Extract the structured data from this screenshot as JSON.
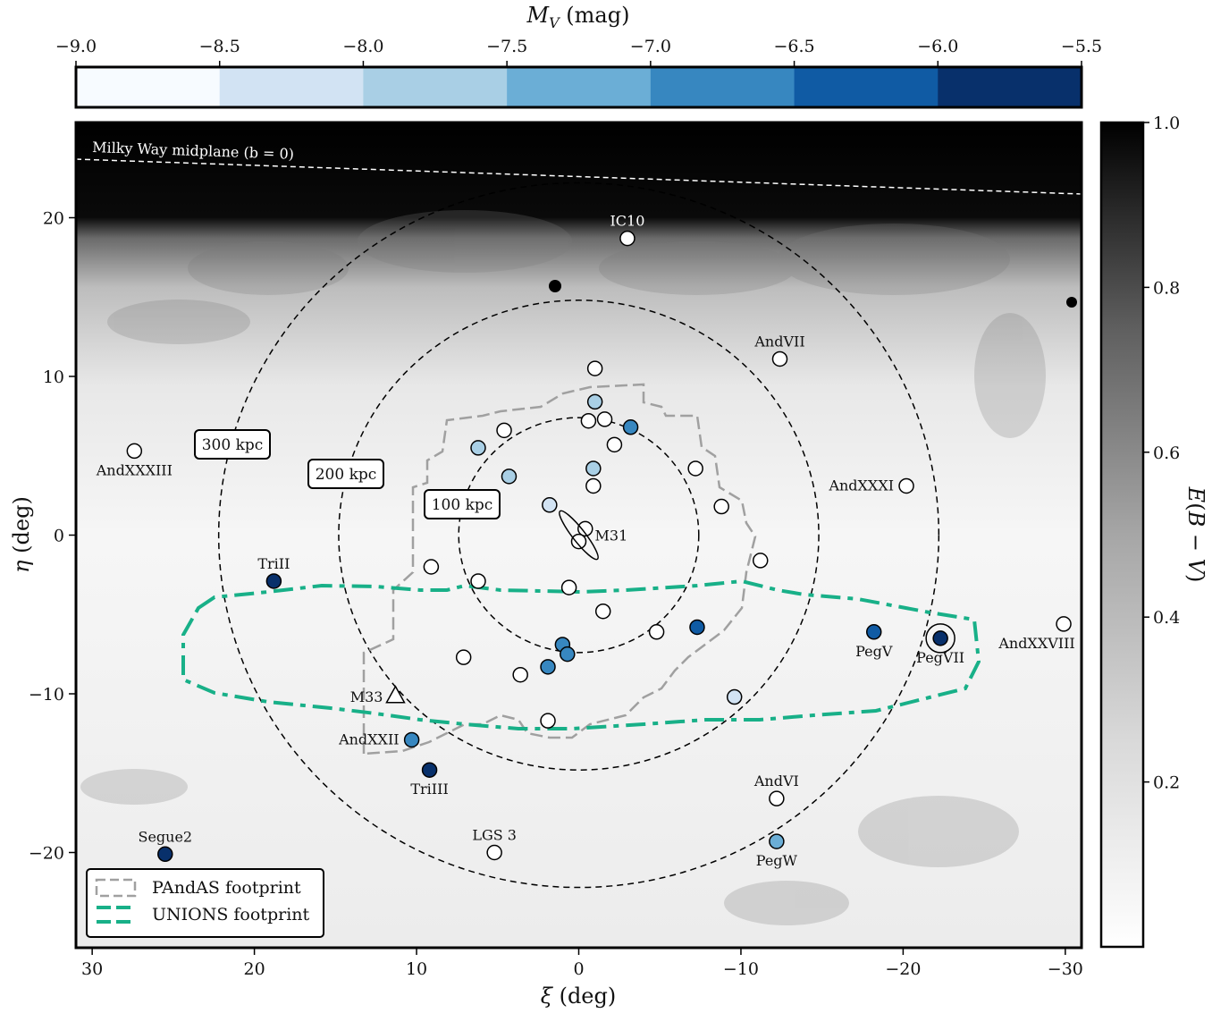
{
  "chart_data": {
    "type": "scatter",
    "xlabel": "ξ (deg)",
    "ylabel": "η (deg)",
    "xlim": [
      31,
      -31
    ],
    "ylim": [
      -26,
      26
    ],
    "xticks": [
      30,
      20,
      10,
      0,
      -10,
      -20,
      -30
    ],
    "xtick_labels": [
      "30",
      "20",
      "10",
      "0",
      "−10",
      "−20",
      "−30"
    ],
    "yticks": [
      20,
      10,
      0,
      -10,
      -20
    ],
    "ytick_labels": [
      "20",
      "10",
      "0",
      "−10",
      "−20"
    ],
    "top_colorbar": {
      "label": "M_V (mag)",
      "ticks": [
        "−9.0",
        "−8.5",
        "−8.0",
        "−7.5",
        "−7.0",
        "−6.5",
        "−6.0",
        "−5.5"
      ],
      "bins": [
        -9.0,
        -8.5,
        -8.0,
        -7.5,
        -7.0,
        -6.5,
        -6.0,
        -5.5
      ],
      "colors": [
        "#f7fbff",
        "#d2e3f3",
        "#a9cfe5",
        "#6baed6",
        "#3787c0",
        "#105ba4",
        "#08306b"
      ]
    },
    "side_colorbar": {
      "label": "E(B − V)",
      "ticks": [
        "1.0",
        "0.8",
        "0.6",
        "0.4",
        "0.2"
      ],
      "tick_values": [
        1.0,
        0.8,
        0.6,
        0.4,
        0.2
      ],
      "range": [
        0.0,
        1.0
      ]
    },
    "midplane_label": "Milky Way midplane (b = 0)",
    "rings": [
      {
        "label": "100 kpc",
        "rx": 7.4,
        "ry": 7.4
      },
      {
        "label": "200 kpc",
        "rx": 14.8,
        "ry": 14.8
      },
      {
        "label": "300 kpc",
        "rx": 22.2,
        "ry": 22.2
      }
    ],
    "legend": [
      {
        "label": "PAndAS footprint",
        "color": "#a0a0a0"
      },
      {
        "label": "UNIONS footprint",
        "color": "#18b088"
      }
    ],
    "named_objects": [
      {
        "name": "IC10",
        "x": -3.0,
        "y": 18.7,
        "color": "#ffffff",
        "label_pos": "above",
        "label_color": "white"
      },
      {
        "name": "AndVII",
        "x": -12.4,
        "y": 11.1,
        "color": "#ffffff",
        "label_pos": "above"
      },
      {
        "name": "AndXXXIII",
        "x": 27.4,
        "y": 5.3,
        "color": "#ffffff",
        "label_pos": "below"
      },
      {
        "name": "AndXXXI",
        "x": -20.2,
        "y": 3.1,
        "color": "#ffffff",
        "label_pos": "left"
      },
      {
        "name": "TriII",
        "x": 18.8,
        "y": -2.9,
        "color": "#08306b",
        "label_pos": "above"
      },
      {
        "name": "AndXXVIII",
        "x": -29.9,
        "y": -5.6,
        "color": "#ffffff",
        "label_pos": "below"
      },
      {
        "name": "PegV",
        "x": -18.2,
        "y": -6.1,
        "color": "#105ba4",
        "label_pos": "below"
      },
      {
        "name": "PegVII",
        "x": -22.3,
        "y": -6.5,
        "color": "#08306b",
        "label_pos": "below",
        "ring": true
      },
      {
        "name": "AndXXII",
        "x": 10.3,
        "y": -12.9,
        "color": "#3787c0",
        "label_pos": "left"
      },
      {
        "name": "TriIII",
        "x": 9.2,
        "y": -14.8,
        "color": "#08306b",
        "label_pos": "below"
      },
      {
        "name": "AndVI",
        "x": -12.2,
        "y": -16.6,
        "color": "#ffffff",
        "label_pos": "above"
      },
      {
        "name": "PegW",
        "x": -12.2,
        "y": -19.3,
        "color": "#6baed6",
        "label_pos": "below"
      },
      {
        "name": "Segue2",
        "x": 25.5,
        "y": -20.1,
        "color": "#08306b",
        "label_pos": "above"
      },
      {
        "name": "LGS 3",
        "x": 5.2,
        "y": -20.0,
        "color": "#ffffff",
        "label_pos": "above"
      }
    ],
    "m31": {
      "name": "M31",
      "x": 0.0,
      "y": 0.0
    },
    "m33": {
      "name": "M33",
      "x": 11.3,
      "y": -10.1
    },
    "other_points": [
      {
        "x": -1.0,
        "y": 10.5,
        "color": "#ffffff"
      },
      {
        "x": -1.0,
        "y": 8.4,
        "color": "#a9cfe5"
      },
      {
        "x": -0.6,
        "y": 7.2,
        "color": "#ffffff"
      },
      {
        "x": -1.6,
        "y": 7.3,
        "color": "#ffffff"
      },
      {
        "x": -3.2,
        "y": 6.8,
        "color": "#3787c0"
      },
      {
        "x": 4.6,
        "y": 6.6,
        "color": "#ffffff"
      },
      {
        "x": -2.2,
        "y": 5.7,
        "color": "#ffffff"
      },
      {
        "x": 6.2,
        "y": 5.5,
        "color": "#a9cfe5"
      },
      {
        "x": -0.9,
        "y": 4.2,
        "color": "#a9cfe5"
      },
      {
        "x": 4.3,
        "y": 3.7,
        "color": "#a9cfe5"
      },
      {
        "x": -0.9,
        "y": 3.1,
        "color": "#ffffff"
      },
      {
        "x": -7.2,
        "y": 4.2,
        "color": "#ffffff"
      },
      {
        "x": 1.8,
        "y": 1.9,
        "color": "#d2e3f3"
      },
      {
        "x": -8.8,
        "y": 1.8,
        "color": "#ffffff"
      },
      {
        "x": -0.4,
        "y": 0.4,
        "color": "#ffffff"
      },
      {
        "x": -0.0,
        "y": -0.4,
        "color": "#ffffff"
      },
      {
        "x": -11.2,
        "y": -1.6,
        "color": "#ffffff"
      },
      {
        "x": 9.1,
        "y": -2.0,
        "color": "#ffffff"
      },
      {
        "x": 6.2,
        "y": -2.9,
        "color": "#ffffff"
      },
      {
        "x": 0.6,
        "y": -3.3,
        "color": "#ffffff"
      },
      {
        "x": -1.5,
        "y": -4.8,
        "color": "#ffffff"
      },
      {
        "x": -4.8,
        "y": -6.1,
        "color": "#ffffff"
      },
      {
        "x": -7.3,
        "y": -5.8,
        "color": "#105ba4"
      },
      {
        "x": 1.0,
        "y": -6.9,
        "color": "#3787c0"
      },
      {
        "x": 0.7,
        "y": -7.5,
        "color": "#3787c0"
      },
      {
        "x": 7.1,
        "y": -7.7,
        "color": "#ffffff"
      },
      {
        "x": 1.9,
        "y": -8.3,
        "color": "#3787c0"
      },
      {
        "x": 3.6,
        "y": -8.8,
        "color": "#ffffff"
      },
      {
        "x": -9.6,
        "y": -10.2,
        "color": "#d2e3f3"
      },
      {
        "x": 1.9,
        "y": -11.7,
        "color": "#ffffff"
      }
    ]
  }
}
